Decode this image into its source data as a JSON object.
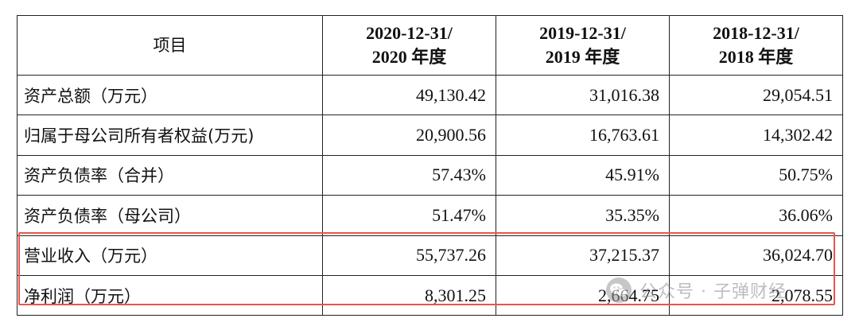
{
  "table": {
    "header": {
      "item_label": "项目",
      "columns": [
        {
          "line1": "2020-12-31/",
          "line2": "2020 年度"
        },
        {
          "line1": "2019-12-31/",
          "line2": "2019 年度"
        },
        {
          "line1": "2018-12-31/",
          "line2": "2018 年度"
        }
      ]
    },
    "rows": [
      {
        "label": "资产总额（万元）",
        "values": [
          "49,130.42",
          "31,016.38",
          "29,054.51"
        ]
      },
      {
        "label": "归属于母公司所有者权益(万元)",
        "values": [
          "20,900.56",
          "16,763.61",
          "14,302.42"
        ]
      },
      {
        "label": "资产负债率（合并）",
        "values": [
          "57.43%",
          "45.91%",
          "50.75%"
        ]
      },
      {
        "label": "资产负债率（母公司）",
        "values": [
          "51.47%",
          "35.35%",
          "36.06%"
        ]
      },
      {
        "label": "营业收入（万元）",
        "values": [
          "55,737.26",
          "37,215.37",
          "36,024.70"
        ]
      },
      {
        "label": "净利润（万元）",
        "values": [
          "8,301.25",
          "2,664.75",
          "2,078.55"
        ]
      }
    ]
  },
  "highlight": {
    "color": "#e8554e"
  },
  "watermark": {
    "text": "公众号 · 子弹财经",
    "icon": "wechat-official-account-icon"
  }
}
